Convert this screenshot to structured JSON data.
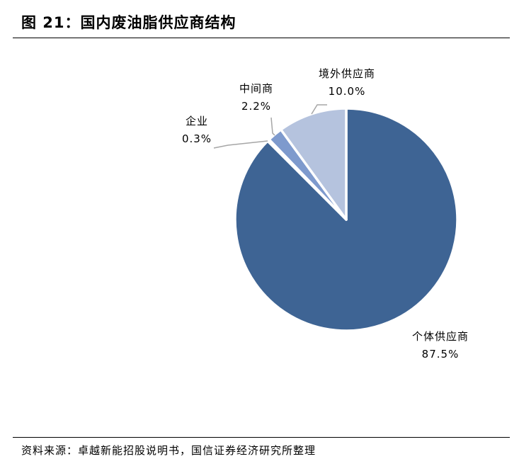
{
  "figure": {
    "title": "图 21：国内废油脂供应商结构",
    "source": "资料来源：卓越新能招股说明书，国信证券经济研究所整理"
  },
  "chart_data": {
    "type": "pie",
    "slices": [
      {
        "label": "个体供应商",
        "value": 87.5,
        "value_label": "87.5%",
        "color": "#3e6494"
      },
      {
        "label": "企业",
        "value": 0.3,
        "value_label": "0.3%",
        "color": "#8fa4cf"
      },
      {
        "label": "中间商",
        "value": 2.2,
        "value_label": "2.2%",
        "color": "#7e9acd"
      },
      {
        "label": "境外供应商",
        "value": 10.0,
        "value_label": "10.0%",
        "color": "#b5c3de"
      }
    ],
    "start_angle_deg": 0,
    "direction": "clockwise",
    "unit": "%"
  }
}
